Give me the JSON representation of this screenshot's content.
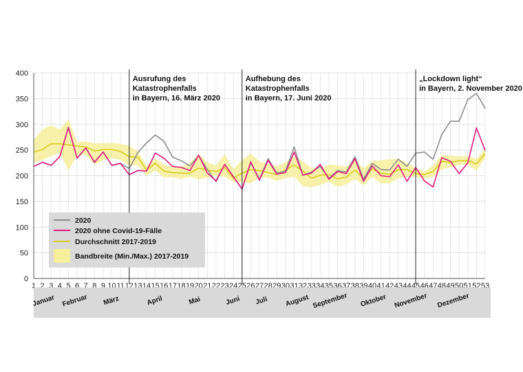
{
  "chart_data": {
    "type": "line",
    "xlabel": "",
    "ylabel": "",
    "ylim": [
      0,
      400
    ],
    "y_ticks": [
      0,
      50,
      100,
      150,
      200,
      250,
      300,
      350,
      400
    ],
    "x": [
      1,
      2,
      3,
      4,
      5,
      6,
      7,
      8,
      9,
      10,
      11,
      12,
      13,
      14,
      15,
      16,
      17,
      18,
      19,
      20,
      21,
      22,
      23,
      24,
      25,
      26,
      27,
      28,
      29,
      30,
      31,
      32,
      33,
      34,
      35,
      36,
      37,
      38,
      39,
      40,
      41,
      42,
      43,
      44,
      45,
      46,
      47,
      48,
      49,
      50,
      51,
      52,
      53
    ],
    "series": [
      {
        "name": "2020",
        "color": "#8c8c8c",
        "values": [
          218,
          226,
          220,
          237,
          294,
          234,
          254,
          226,
          246,
          220,
          224,
          214,
          245,
          264,
          279,
          267,
          236,
          229,
          219,
          239,
          212,
          188,
          222,
          198,
          174,
          225,
          193,
          233,
          205,
          209,
          256,
          201,
          207,
          218,
          195,
          210,
          207,
          237,
          193,
          224,
          212,
          211,
          232,
          218,
          244,
          246,
          232,
          280,
          306,
          306,
          348,
          360,
          331
        ]
      },
      {
        "name": "2020 ohne Covid-19-Fälle",
        "color": "#e0197d",
        "values": [
          218,
          226,
          220,
          237,
          294,
          234,
          254,
          226,
          246,
          220,
          224,
          202,
          210,
          209,
          244,
          234,
          218,
          216,
          210,
          240,
          205,
          190,
          222,
          198,
          174,
          227,
          191,
          230,
          203,
          206,
          246,
          201,
          205,
          222,
          193,
          208,
          204,
          233,
          189,
          219,
          200,
          198,
          221,
          189,
          216,
          190,
          178,
          235,
          228,
          204,
          225,
          293,
          249
        ]
      },
      {
        "name": "Durchschnitt 2017-2019",
        "color": "#d9cc1e",
        "values": [
          246,
          251,
          262,
          262,
          260,
          258,
          256,
          248,
          251,
          251,
          247,
          237,
          236,
          211,
          224,
          209,
          206,
          205,
          205,
          215,
          211,
          208,
          216,
          195,
          205,
          212,
          210,
          206,
          202,
          211,
          221,
          209,
          195,
          201,
          202,
          194,
          197,
          211,
          195,
          213,
          205,
          203,
          212,
          212,
          204,
          202,
          208,
          228,
          226,
          229,
          229,
          223,
          243
        ]
      },
      {
        "name": "Bandbreite (Min./Max.) 2017-2019",
        "color": "#f6ef9c",
        "min": [
          226,
          230,
          238,
          245,
          210,
          240,
          240,
          222,
          230,
          234,
          231,
          220,
          220,
          200,
          210,
          197,
          197,
          193,
          198,
          193,
          196,
          200,
          198,
          188,
          188,
          185,
          197,
          196,
          190,
          195,
          198,
          180,
          177,
          182,
          188,
          178,
          183,
          194,
          181,
          198,
          185,
          185,
          195,
          198,
          198,
          194,
          198,
          212,
          216,
          221,
          221,
          210,
          234
        ],
        "max": [
          270,
          290,
          298,
          290,
          310,
          265,
          267,
          263,
          263,
          264,
          262,
          258,
          248,
          219,
          233,
          222,
          217,
          218,
          225,
          242,
          226,
          220,
          242,
          213,
          231,
          243,
          228,
          223,
          219,
          226,
          238,
          228,
          215,
          214,
          222,
          220,
          218,
          230,
          215,
          229,
          230,
          232,
          233,
          225,
          214,
          208,
          220,
          240,
          239,
          238,
          238,
          233,
          252
        ]
      }
    ],
    "annotations": [
      {
        "week": 12,
        "lines": [
          "Ausrufung des",
          "Katastrophenfalls",
          "in Bayern, 16. März 2020"
        ]
      },
      {
        "week": 25,
        "lines": [
          "Aufhebung des",
          "Katastrophenfalls",
          "in Bayern, 17. Juni 2020"
        ]
      },
      {
        "week": 45,
        "lines": [
          "„Lockdown light“",
          "in Bayern, 2. November 2020"
        ]
      }
    ],
    "months": [
      "Januar",
      "Februar",
      "März",
      "April",
      "Mai",
      "Juni",
      "Juli",
      "August",
      "September",
      "Oktober",
      "November",
      "Dezember"
    ],
    "legend": [
      "2020",
      "2020 ohne Covid-19-Fälle",
      "Durchschnitt 2017-2019",
      "Bandbreite (Min./Max.) 2017-2019"
    ],
    "legend_position": "bottom-left",
    "grid": true
  }
}
